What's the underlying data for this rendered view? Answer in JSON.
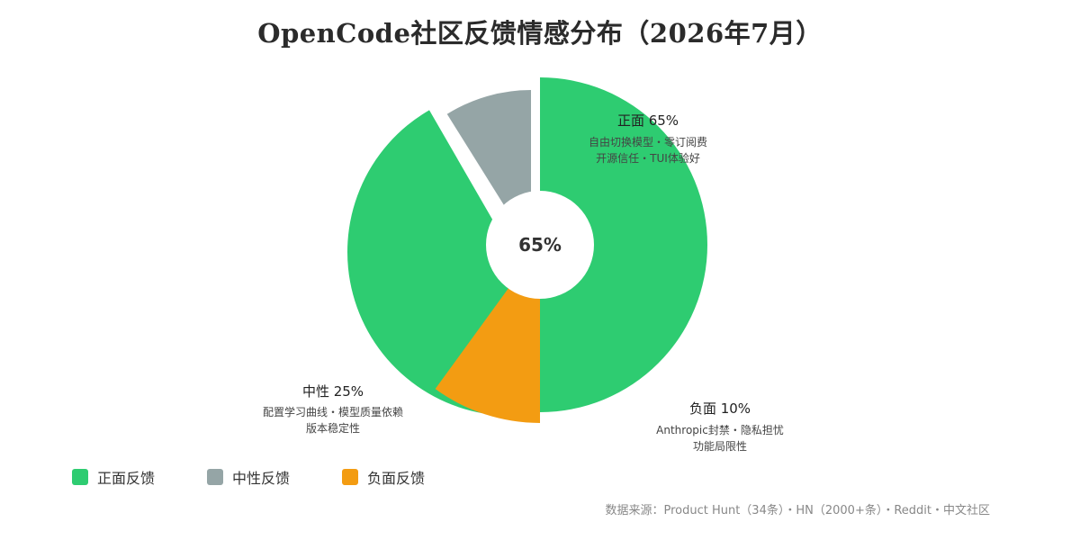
{
  "title": "OpenCode社区反馈情感分布（2026年7月）",
  "center_label": "65%",
  "source_note": "数据来源：Product Hunt（34条）・HN（2000+条）・Reddit・中文社区",
  "colors": {
    "positive": "#2ecc71",
    "neutral": "#95a5a6",
    "negative": "#f39c12"
  },
  "labels": {
    "positive": {
      "head": "正面 65%",
      "line1": "自由切换模型・零订阅费",
      "line2": "开源信任・TUI体验好"
    },
    "neutral": {
      "head": "中性 25%",
      "line1": "配置学习曲线・模型质量依赖",
      "line2": "版本稳定性"
    },
    "negative": {
      "head": "负面 10%",
      "line1": "Anthropic封禁・隐私担忧",
      "line2": "功能局限性"
    }
  },
  "legend": [
    {
      "label": "正面反馈",
      "color": "#2ecc71"
    },
    {
      "label": "中性反馈",
      "color": "#95a5a6"
    },
    {
      "label": "负面反馈",
      "color": "#f39c12"
    }
  ],
  "chart_data": {
    "type": "pie",
    "categories": [
      "正面反馈",
      "中性反馈",
      "负面反馈"
    ],
    "values": [
      65,
      25,
      10
    ]
  }
}
